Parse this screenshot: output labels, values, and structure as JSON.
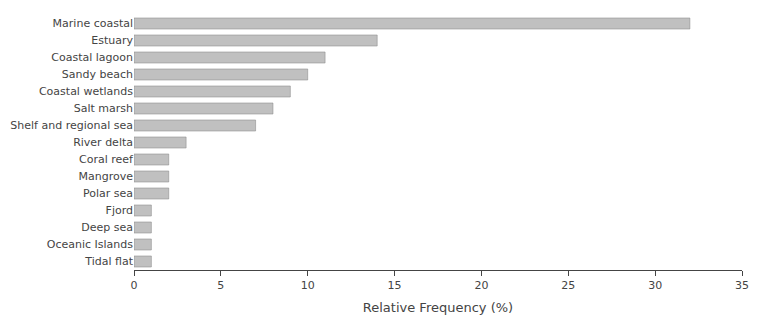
{
  "chart_data": {
    "type": "bar",
    "orientation": "horizontal",
    "categories": [
      "Marine coastal",
      "Estuary",
      "Coastal lagoon",
      "Sandy beach",
      "Coastal wetlands",
      "Salt marsh",
      "Shelf and regional sea",
      "River delta",
      "Coral reef",
      "Mangrove",
      "Polar sea",
      "Fjord",
      "Deep sea",
      "Oceanic Islands",
      "Tidal flat"
    ],
    "values": [
      32.0,
      14.0,
      11.0,
      10.0,
      9.0,
      8.0,
      7.0,
      3.0,
      2.0,
      2.0,
      2.0,
      1.0,
      1.0,
      1.0,
      1.0
    ],
    "color": "#c0c0c0",
    "xlabel": "Relative Frequency (%)",
    "xlim": [
      0,
      35
    ],
    "xticks": [
      0,
      5,
      10,
      15,
      20,
      25,
      30,
      35
    ],
    "grid": false
  }
}
